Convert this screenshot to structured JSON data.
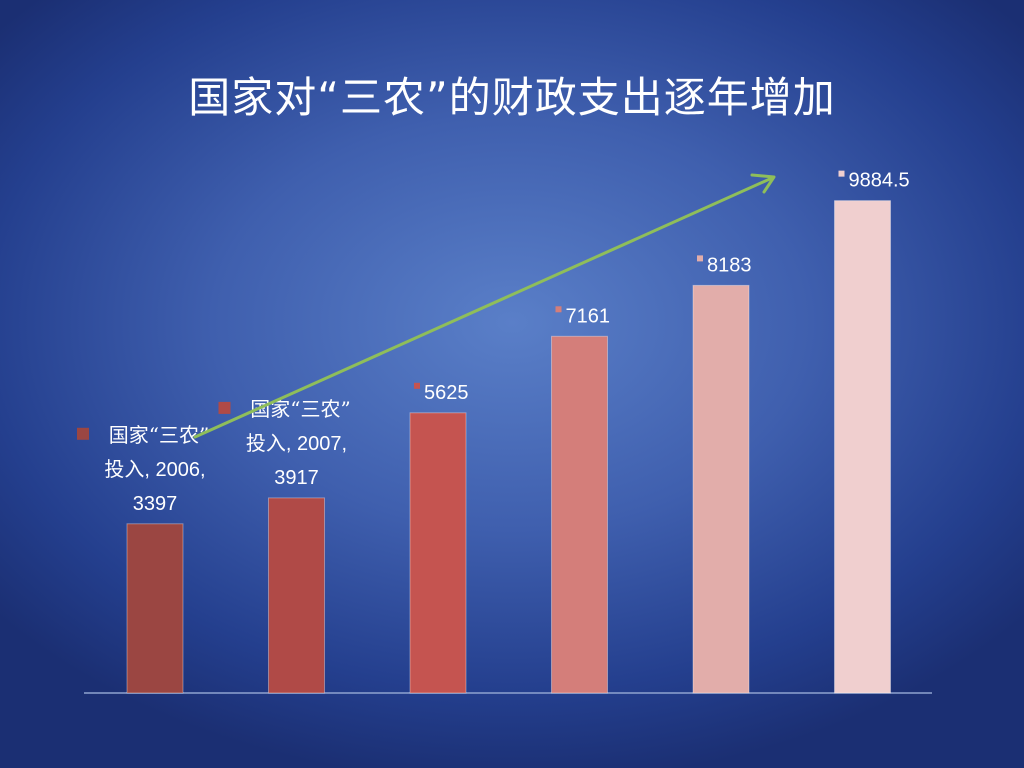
{
  "slide": {
    "title": "国家对“三农”的财政支出逐年增加"
  },
  "chart_data": {
    "type": "bar",
    "series": [
      {
        "name": "国家“三农”投入",
        "values": [
          3397,
          3917,
          5625,
          7161,
          8183,
          9884.5
        ]
      }
    ],
    "categories": [
      "2006",
      "2007",
      "",
      "",
      "",
      ""
    ],
    "data_labels": [
      [
        "国家“三农”",
        "投入, 2006,",
        "3397"
      ],
      [
        "国家“三农”",
        "投入, 2007,",
        "3917"
      ],
      [
        "5625"
      ],
      [
        "7161"
      ],
      [
        "8183"
      ],
      [
        "9884.5"
      ]
    ],
    "bar_colors": [
      "#9b4642",
      "#b04a47",
      "#c55450",
      "#d47e7a",
      "#e2adaa",
      "#f0cfcf"
    ],
    "ylim": [
      0,
      10600
    ],
    "trend_arrow_color": "#8fbe5a",
    "grid": false,
    "legend": "none"
  }
}
